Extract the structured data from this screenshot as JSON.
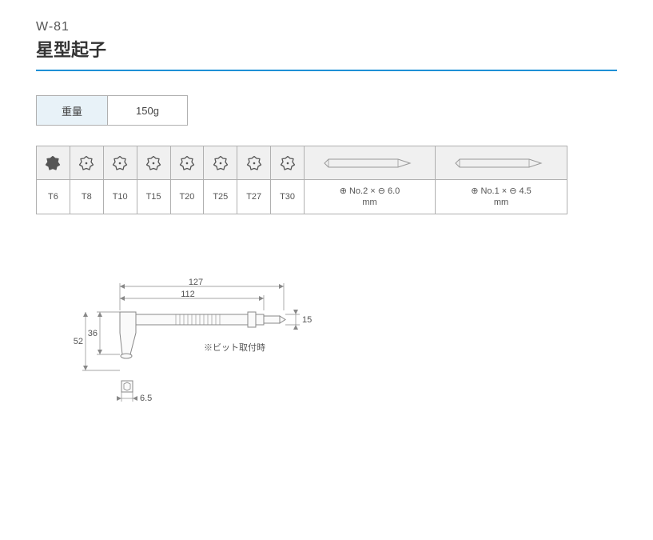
{
  "header": {
    "model": "W-81",
    "name": "星型起子"
  },
  "weight": {
    "label": "重量",
    "value": "150g"
  },
  "bits": {
    "torx": [
      "T6",
      "T8",
      "T10",
      "T15",
      "T20",
      "T25",
      "T27",
      "T30"
    ],
    "torx_filled_index": 0,
    "phillips": [
      {
        "spec1": "⊕ No.2 × ⊖ 6.0",
        "spec2": "mm"
      },
      {
        "spec1": "⊕ No.1 × ⊖ 4.5",
        "spec2": "mm"
      }
    ]
  },
  "diagram": {
    "dims": {
      "len_total": "127",
      "len_body": "112",
      "tip_height": "15",
      "head_height": "36",
      "overall_height": "52",
      "hex": "6.5"
    },
    "note": "※ビット取付時"
  },
  "colors": {
    "accent": "#1e90d6",
    "cell_header_bg": "#f0f0f0",
    "cell_label_bg": "#e8f2f8",
    "border": "#b0b0b0",
    "text": "#555555"
  }
}
